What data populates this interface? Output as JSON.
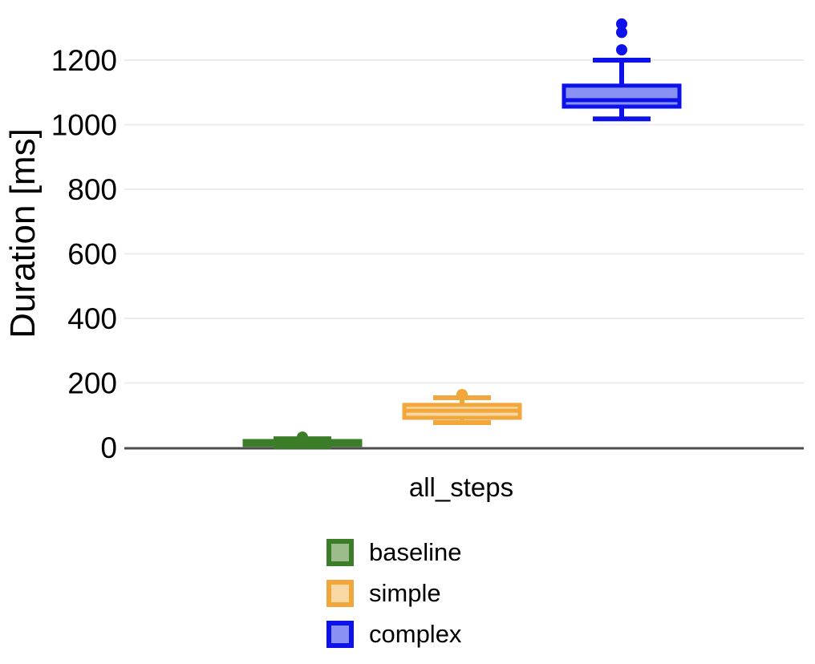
{
  "chart_data": {
    "type": "boxplot",
    "title": "",
    "xlabel": "",
    "ylabel": "Duration [ms]",
    "categories": [
      "all_steps"
    ],
    "y_ticks": [
      0,
      200,
      400,
      600,
      800,
      1000,
      1200
    ],
    "ylim": [
      0,
      1386
    ],
    "grid": "horizontal-light-gray",
    "zero_axis_color": "#4d4d4d",
    "gridline_color": "#ececec",
    "legend_position": "bottom-center",
    "series": [
      {
        "name": "baseline",
        "color": "#3b7d28",
        "fill": "#9cbc8c",
        "box": {
          "low": 3,
          "q1": 8,
          "median": 14,
          "q3": 20,
          "high": 27
        },
        "outliers": [
          32
        ]
      },
      {
        "name": "simple",
        "color": "#f2a73c",
        "fill": "#f8d9a4",
        "box": {
          "low": 77,
          "q1": 92,
          "median": 114,
          "q3": 132,
          "high": 154
        },
        "outliers": [
          164
        ]
      },
      {
        "name": "complex",
        "color": "#0d12ea",
        "fill": "#8992f3",
        "box": {
          "low": 1018,
          "q1": 1056,
          "median": 1076,
          "q3": 1121,
          "high": 1200
        },
        "outliers": [
          1232,
          1286,
          1312
        ]
      }
    ]
  }
}
